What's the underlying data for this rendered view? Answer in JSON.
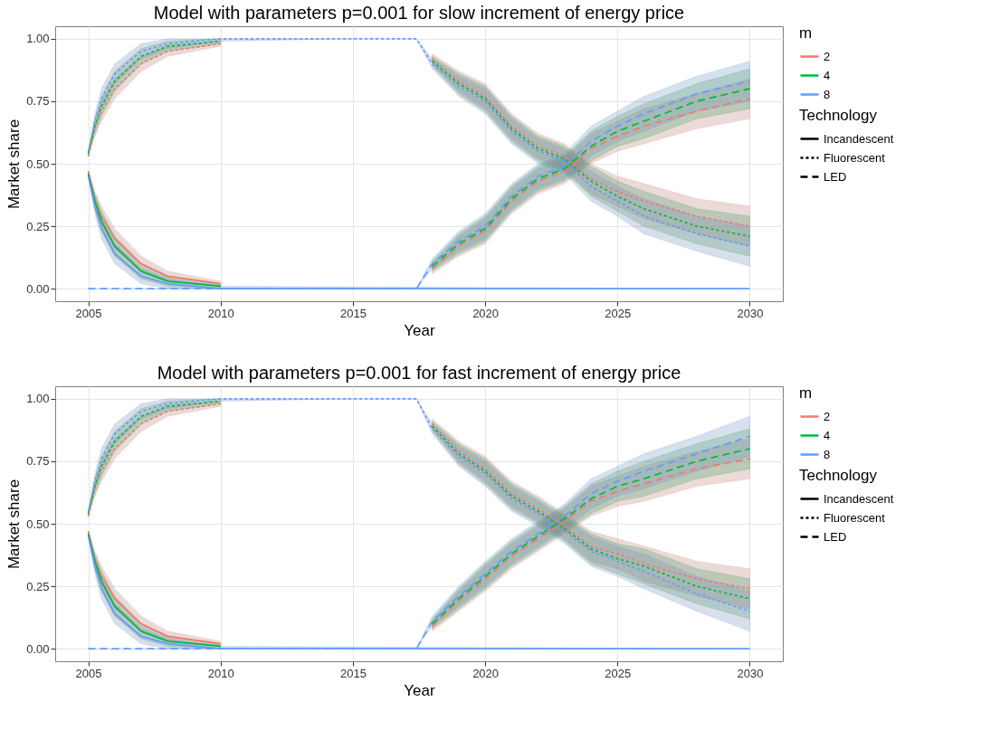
{
  "chart_data": [
    {
      "type": "line",
      "title": "Model with parameters p=0.001 for slow increment of energy price",
      "xlabel": "Year",
      "ylabel": "Market share",
      "legend_title": "m",
      "annotations": [
        "Technology",
        "Incandescent",
        "Fluorescent",
        "LED"
      ],
      "legend": "right",
      "grid": true,
      "x": [
        2005,
        2005.25,
        2005.5,
        2006,
        2007,
        2008,
        2010,
        2015,
        2017.4,
        2018,
        2019,
        2020,
        2021,
        2022,
        2023,
        2024,
        2025,
        2026,
        2028,
        2030
      ],
      "xlim": [
        2003.75,
        2031.25
      ],
      "xticks": [
        2005,
        2010,
        2015,
        2020,
        2025,
        2030
      ],
      "ylim": [
        -0.05,
        1.05
      ],
      "yticks": [
        {
          "value": 0,
          "label": "0.00"
        },
        {
          "value": 0.25,
          "label": "0.25"
        },
        {
          "value": 0.5,
          "label": "0.50"
        },
        {
          "value": 0.75,
          "label": "0.75"
        },
        {
          "value": 1,
          "label": "1.00"
        }
      ],
      "series": [
        {
          "line_style": "dashed",
          "color": "#f8766d",
          "values": [
            null,
            null,
            null,
            null,
            null,
            null,
            null,
            null,
            null,
            0.08,
            0.17,
            0.23,
            0.35,
            0.43,
            0.47,
            0.56,
            0.61,
            0.65,
            0.71,
            0.76
          ],
          "lower": [
            null,
            null,
            null,
            null,
            null,
            null,
            null,
            null,
            null,
            0.06,
            0.13,
            0.18,
            0.3,
            0.38,
            0.42,
            0.5,
            0.55,
            0.58,
            0.64,
            0.68
          ],
          "upper": [
            null,
            null,
            null,
            null,
            null,
            null,
            null,
            null,
            null,
            0.1,
            0.21,
            0.28,
            0.4,
            0.48,
            0.52,
            0.62,
            0.67,
            0.72,
            0.78,
            0.84
          ]
        },
        {
          "line_style": "dashed",
          "color": "#00ba38",
          "values": [
            null,
            null,
            null,
            null,
            null,
            null,
            null,
            null,
            null,
            0.09,
            0.18,
            0.24,
            0.36,
            0.44,
            0.48,
            0.57,
            0.63,
            0.67,
            0.75,
            0.8
          ],
          "lower": [
            null,
            null,
            null,
            null,
            null,
            null,
            null,
            null,
            null,
            0.07,
            0.14,
            0.19,
            0.31,
            0.39,
            0.43,
            0.51,
            0.57,
            0.6,
            0.68,
            0.72
          ],
          "upper": [
            null,
            null,
            null,
            null,
            null,
            null,
            null,
            null,
            null,
            0.11,
            0.22,
            0.29,
            0.41,
            0.49,
            0.53,
            0.63,
            0.69,
            0.74,
            0.82,
            0.88
          ]
        },
        {
          "line_style": "dashed",
          "color": "#619cff",
          "x": [
            2005,
            2008,
            2017.4,
            2018,
            2019,
            2020,
            2021,
            2022,
            2023,
            2024,
            2025,
            2026,
            2028,
            2030
          ],
          "values": [
            0,
            0,
            0,
            0.1,
            0.19,
            0.25,
            0.37,
            0.45,
            0.49,
            0.59,
            0.65,
            0.7,
            0.78,
            0.83
          ],
          "lower": [
            0,
            0,
            0,
            0.08,
            0.15,
            0.2,
            0.32,
            0.4,
            0.44,
            0.53,
            0.59,
            0.63,
            0.71,
            0.75
          ],
          "upper": [
            0,
            0,
            0,
            0.12,
            0.23,
            0.3,
            0.42,
            0.5,
            0.54,
            0.65,
            0.71,
            0.77,
            0.85,
            0.91
          ]
        },
        {
          "line_style": "dotted",
          "color": "#f8766d",
          "values": [
            0.53,
            0.64,
            0.71,
            0.8,
            0.9,
            0.95,
            0.98,
            null,
            null,
            0.92,
            0.83,
            0.77,
            0.65,
            0.57,
            0.53,
            0.44,
            0.39,
            0.35,
            0.29,
            0.25
          ],
          "lower": [
            0.53,
            0.61,
            0.67,
            0.76,
            0.87,
            0.93,
            0.97,
            null,
            null,
            0.9,
            0.79,
            0.72,
            0.6,
            0.52,
            0.48,
            0.38,
            0.33,
            0.28,
            0.22,
            0.17
          ],
          "upper": [
            0.53,
            0.67,
            0.75,
            0.84,
            0.93,
            0.97,
            0.99,
            null,
            null,
            0.94,
            0.87,
            0.82,
            0.7,
            0.62,
            0.58,
            0.5,
            0.45,
            0.42,
            0.36,
            0.33
          ]
        },
        {
          "line_style": "dotted",
          "color": "#00ba38",
          "values": [
            0.54,
            0.65,
            0.73,
            0.83,
            0.93,
            0.97,
            0.99,
            null,
            null,
            0.91,
            0.82,
            0.76,
            0.64,
            0.56,
            0.52,
            0.43,
            0.37,
            0.32,
            0.25,
            0.21
          ],
          "lower": [
            0.54,
            0.62,
            0.69,
            0.79,
            0.9,
            0.95,
            0.98,
            null,
            null,
            0.89,
            0.78,
            0.71,
            0.59,
            0.51,
            0.47,
            0.37,
            0.31,
            0.25,
            0.18,
            0.13
          ],
          "upper": [
            0.54,
            0.68,
            0.77,
            0.87,
            0.96,
            0.99,
            1,
            null,
            null,
            0.93,
            0.86,
            0.81,
            0.69,
            0.61,
            0.57,
            0.49,
            0.43,
            0.39,
            0.32,
            0.29
          ]
        },
        {
          "line_style": "dotted",
          "color": "#619cff",
          "values": [
            0.55,
            0.67,
            0.76,
            0.86,
            0.95,
            0.98,
            1,
            1,
            1,
            0.9,
            0.81,
            0.75,
            0.63,
            0.55,
            0.51,
            0.41,
            0.35,
            0.29,
            0.22,
            0.17
          ],
          "lower": [
            0.55,
            0.64,
            0.72,
            0.82,
            0.92,
            0.96,
            0.99,
            1,
            1,
            0.88,
            0.77,
            0.7,
            0.58,
            0.5,
            0.46,
            0.35,
            0.29,
            0.22,
            0.15,
            0.09
          ],
          "upper": [
            0.55,
            0.7,
            0.8,
            0.9,
            0.98,
            1,
            1,
            1,
            1,
            0.92,
            0.85,
            0.8,
            0.68,
            0.6,
            0.56,
            0.47,
            0.41,
            0.36,
            0.29,
            0.25
          ]
        },
        {
          "name": "2",
          "line_style": "solid",
          "color": "#f8766d",
          "values": [
            0.47,
            0.36,
            0.29,
            0.2,
            0.1,
            0.05,
            0.02,
            null,
            null,
            null,
            null,
            null,
            null,
            null,
            null,
            null,
            null,
            null,
            null,
            null
          ],
          "lower": [
            0.47,
            0.33,
            0.25,
            0.16,
            0.07,
            0.03,
            0.01,
            null,
            null,
            null,
            null,
            null,
            null,
            null,
            null,
            null,
            null,
            null,
            null,
            null
          ],
          "upper": [
            0.47,
            0.39,
            0.33,
            0.24,
            0.13,
            0.07,
            0.03,
            null,
            null,
            null,
            null,
            null,
            null,
            null,
            null,
            null,
            null,
            null,
            null,
            null
          ]
        },
        {
          "name": "4",
          "line_style": "solid",
          "color": "#00ba38",
          "values": [
            0.46,
            0.35,
            0.27,
            0.17,
            0.07,
            0.03,
            0.01,
            null,
            null,
            null,
            null,
            null,
            null,
            null,
            null,
            null,
            null,
            null,
            null,
            null
          ],
          "lower": [
            0.46,
            0.32,
            0.23,
            0.13,
            0.04,
            0.01,
            0,
            null,
            null,
            null,
            null,
            null,
            null,
            null,
            null,
            null,
            null,
            null,
            null,
            null
          ],
          "upper": [
            0.46,
            0.38,
            0.31,
            0.21,
            0.1,
            0.05,
            0.02,
            null,
            null,
            null,
            null,
            null,
            null,
            null,
            null,
            null,
            null,
            null,
            null,
            null
          ]
        },
        {
          "name": "8",
          "line_style": "solid",
          "color": "#619cff",
          "x": [
            2005,
            2005.25,
            2005.5,
            2006,
            2007,
            2008,
            2010,
            2030
          ],
          "values": [
            0.45,
            0.33,
            0.24,
            0.14,
            0.05,
            0.02,
            0,
            0
          ],
          "lower": [
            0.45,
            0.3,
            0.2,
            0.1,
            0.02,
            0,
            0,
            0
          ],
          "upper": [
            0.45,
            0.36,
            0.28,
            0.18,
            0.08,
            0.04,
            0.01,
            0
          ]
        }
      ]
    },
    {
      "type": "line",
      "title": "Model with parameters p=0.001 for fast increment of energy price",
      "xlabel": "Year",
      "ylabel": "Market share",
      "legend_title": "m",
      "annotations": [
        "Technology",
        "Incandescent",
        "Fluorescent",
        "LED"
      ],
      "legend": "right",
      "grid": true,
      "x": [
        2005,
        2005.25,
        2005.5,
        2006,
        2007,
        2008,
        2010,
        2015,
        2017.4,
        2018,
        2019,
        2020,
        2021,
        2022,
        2023,
        2024,
        2025,
        2026,
        2028,
        2030
      ],
      "xlim": [
        2003.75,
        2031.25
      ],
      "xticks": [
        2005,
        2010,
        2015,
        2020,
        2025,
        2030
      ],
      "ylim": [
        -0.05,
        1.05
      ],
      "yticks": [
        {
          "value": 0,
          "label": "0.00"
        },
        {
          "value": 0.25,
          "label": "0.25"
        },
        {
          "value": 0.5,
          "label": "0.50"
        },
        {
          "value": 0.75,
          "label": "0.75"
        },
        {
          "value": 1,
          "label": "1.00"
        }
      ],
      "series": [
        {
          "line_style": "dashed",
          "color": "#f8766d",
          "values": [
            null,
            null,
            null,
            null,
            null,
            null,
            null,
            null,
            null,
            0.09,
            0.19,
            0.28,
            0.37,
            0.44,
            0.51,
            0.59,
            0.63,
            0.66,
            0.72,
            0.76
          ],
          "lower": [
            null,
            null,
            null,
            null,
            null,
            null,
            null,
            null,
            null,
            0.07,
            0.15,
            0.23,
            0.32,
            0.39,
            0.46,
            0.53,
            0.57,
            0.59,
            0.65,
            0.68
          ],
          "upper": [
            null,
            null,
            null,
            null,
            null,
            null,
            null,
            null,
            null,
            0.11,
            0.23,
            0.33,
            0.42,
            0.49,
            0.56,
            0.65,
            0.69,
            0.73,
            0.79,
            0.84
          ]
        },
        {
          "line_style": "dashed",
          "color": "#00ba38",
          "values": [
            null,
            null,
            null,
            null,
            null,
            null,
            null,
            null,
            null,
            0.1,
            0.2,
            0.29,
            0.38,
            0.45,
            0.52,
            0.6,
            0.65,
            0.68,
            0.75,
            0.8
          ],
          "lower": [
            null,
            null,
            null,
            null,
            null,
            null,
            null,
            null,
            null,
            0.08,
            0.16,
            0.24,
            0.33,
            0.4,
            0.47,
            0.54,
            0.59,
            0.61,
            0.68,
            0.72
          ],
          "upper": [
            null,
            null,
            null,
            null,
            null,
            null,
            null,
            null,
            null,
            0.12,
            0.24,
            0.34,
            0.43,
            0.5,
            0.57,
            0.66,
            0.71,
            0.75,
            0.82,
            0.88
          ]
        },
        {
          "line_style": "dashed",
          "color": "#619cff",
          "x": [
            2005,
            2008,
            2017.4,
            2018,
            2019,
            2020,
            2021,
            2022,
            2023,
            2024,
            2025,
            2026,
            2028,
            2030
          ],
          "values": [
            0,
            0,
            0,
            0.11,
            0.21,
            0.3,
            0.39,
            0.46,
            0.53,
            0.62,
            0.67,
            0.71,
            0.78,
            0.85
          ],
          "lower": [
            0,
            0,
            0,
            0.09,
            0.17,
            0.25,
            0.34,
            0.41,
            0.48,
            0.56,
            0.61,
            0.64,
            0.71,
            0.77
          ],
          "upper": [
            0,
            0,
            0,
            0.13,
            0.25,
            0.35,
            0.44,
            0.51,
            0.58,
            0.68,
            0.73,
            0.78,
            0.85,
            0.93
          ]
        },
        {
          "line_style": "dotted",
          "color": "#f8766d",
          "values": [
            0.53,
            0.64,
            0.71,
            0.8,
            0.9,
            0.95,
            0.98,
            null,
            null,
            0.9,
            0.79,
            0.72,
            0.62,
            0.56,
            0.49,
            0.41,
            0.38,
            0.34,
            0.28,
            0.24
          ],
          "lower": [
            0.53,
            0.61,
            0.67,
            0.76,
            0.87,
            0.93,
            0.97,
            null,
            null,
            0.88,
            0.75,
            0.67,
            0.57,
            0.51,
            0.44,
            0.35,
            0.32,
            0.27,
            0.21,
            0.16
          ],
          "upper": [
            0.53,
            0.67,
            0.75,
            0.84,
            0.93,
            0.97,
            0.99,
            null,
            null,
            0.92,
            0.83,
            0.77,
            0.67,
            0.61,
            0.54,
            0.47,
            0.44,
            0.41,
            0.35,
            0.32
          ]
        },
        {
          "line_style": "dotted",
          "color": "#00ba38",
          "values": [
            0.54,
            0.65,
            0.73,
            0.83,
            0.93,
            0.97,
            0.99,
            null,
            null,
            0.89,
            0.78,
            0.71,
            0.61,
            0.55,
            0.48,
            0.4,
            0.36,
            0.33,
            0.25,
            0.2
          ],
          "lower": [
            0.54,
            0.62,
            0.69,
            0.79,
            0.9,
            0.95,
            0.98,
            null,
            null,
            0.87,
            0.74,
            0.66,
            0.56,
            0.5,
            0.43,
            0.34,
            0.3,
            0.26,
            0.18,
            0.12
          ],
          "upper": [
            0.54,
            0.68,
            0.77,
            0.87,
            0.96,
            0.99,
            1,
            null,
            null,
            0.91,
            0.82,
            0.76,
            0.66,
            0.6,
            0.53,
            0.46,
            0.42,
            0.4,
            0.32,
            0.28
          ]
        },
        {
          "line_style": "dotted",
          "color": "#619cff",
          "values": [
            0.55,
            0.67,
            0.76,
            0.86,
            0.95,
            0.98,
            1,
            1,
            1,
            0.88,
            0.77,
            0.7,
            0.6,
            0.54,
            0.47,
            0.39,
            0.35,
            0.31,
            0.22,
            0.15
          ],
          "lower": [
            0.55,
            0.64,
            0.72,
            0.82,
            0.92,
            0.96,
            0.99,
            1,
            1,
            0.86,
            0.73,
            0.65,
            0.55,
            0.49,
            0.42,
            0.33,
            0.29,
            0.24,
            0.15,
            0.07
          ],
          "upper": [
            0.55,
            0.7,
            0.8,
            0.9,
            0.98,
            1,
            1,
            1,
            1,
            0.9,
            0.81,
            0.75,
            0.65,
            0.59,
            0.52,
            0.45,
            0.41,
            0.38,
            0.29,
            0.23
          ]
        },
        {
          "name": "2",
          "line_style": "solid",
          "color": "#f8766d",
          "values": [
            0.47,
            0.36,
            0.29,
            0.2,
            0.1,
            0.05,
            0.02,
            null,
            null,
            null,
            null,
            null,
            null,
            null,
            null,
            null,
            null,
            null,
            null,
            null
          ],
          "lower": [
            0.47,
            0.33,
            0.25,
            0.16,
            0.07,
            0.03,
            0.01,
            null,
            null,
            null,
            null,
            null,
            null,
            null,
            null,
            null,
            null,
            null,
            null,
            null
          ],
          "upper": [
            0.47,
            0.39,
            0.33,
            0.24,
            0.13,
            0.07,
            0.03,
            null,
            null,
            null,
            null,
            null,
            null,
            null,
            null,
            null,
            null,
            null,
            null,
            null
          ]
        },
        {
          "name": "4",
          "line_style": "solid",
          "color": "#00ba38",
          "values": [
            0.46,
            0.35,
            0.27,
            0.17,
            0.07,
            0.03,
            0.01,
            null,
            null,
            null,
            null,
            null,
            null,
            null,
            null,
            null,
            null,
            null,
            null,
            null
          ],
          "lower": [
            0.46,
            0.32,
            0.23,
            0.13,
            0.04,
            0.01,
            0,
            null,
            null,
            null,
            null,
            null,
            null,
            null,
            null,
            null,
            null,
            null,
            null,
            null
          ],
          "upper": [
            0.46,
            0.38,
            0.31,
            0.21,
            0.1,
            0.05,
            0.02,
            null,
            null,
            null,
            null,
            null,
            null,
            null,
            null,
            null,
            null,
            null,
            null,
            null
          ]
        },
        {
          "name": "8",
          "line_style": "solid",
          "color": "#619cff",
          "x": [
            2005,
            2005.25,
            2005.5,
            2006,
            2007,
            2008,
            2010,
            2030
          ],
          "values": [
            0.45,
            0.33,
            0.24,
            0.14,
            0.05,
            0.02,
            0,
            0
          ],
          "lower": [
            0.45,
            0.3,
            0.2,
            0.1,
            0.02,
            0,
            0,
            0
          ],
          "upper": [
            0.45,
            0.36,
            0.28,
            0.18,
            0.08,
            0.04,
            0.01,
            0
          ]
        }
      ]
    }
  ]
}
